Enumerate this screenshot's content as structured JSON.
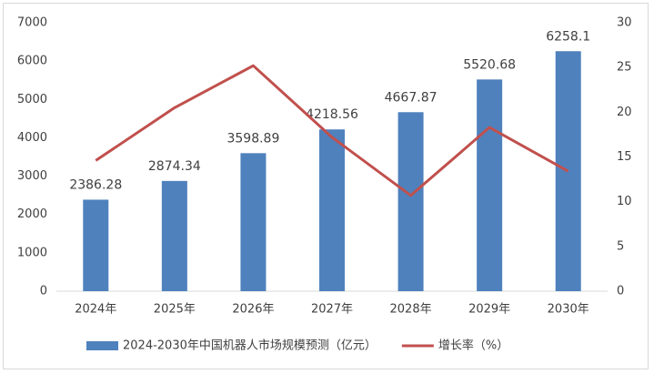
{
  "chart_data": {
    "type": "bar-line",
    "categories": [
      "2024年",
      "2025年",
      "2026年",
      "2027年",
      "2028年",
      "2029年",
      "2030年"
    ],
    "series": [
      {
        "name": "2024-2030年中国机器人市场规模预测（亿元）",
        "type": "bar",
        "color": "#4f81bd",
        "values": [
          2386.28,
          2874.34,
          3598.89,
          4218.56,
          4667.87,
          5520.68,
          6258.1
        ]
      },
      {
        "name": "增长率（%）",
        "type": "line",
        "axis": "y2",
        "color": "#c0504d",
        "values": [
          14.6,
          20.5,
          25.2,
          17.2,
          10.7,
          18.3,
          13.4
        ]
      }
    ],
    "ylim": [
      0,
      7000
    ],
    "yticks": [
      0,
      1000,
      2000,
      3000,
      4000,
      5000,
      6000,
      7000
    ],
    "y2lim": [
      0,
      30
    ],
    "y2ticks": [
      0,
      5,
      10,
      15,
      20,
      25,
      30
    ],
    "legend": "bottom"
  }
}
